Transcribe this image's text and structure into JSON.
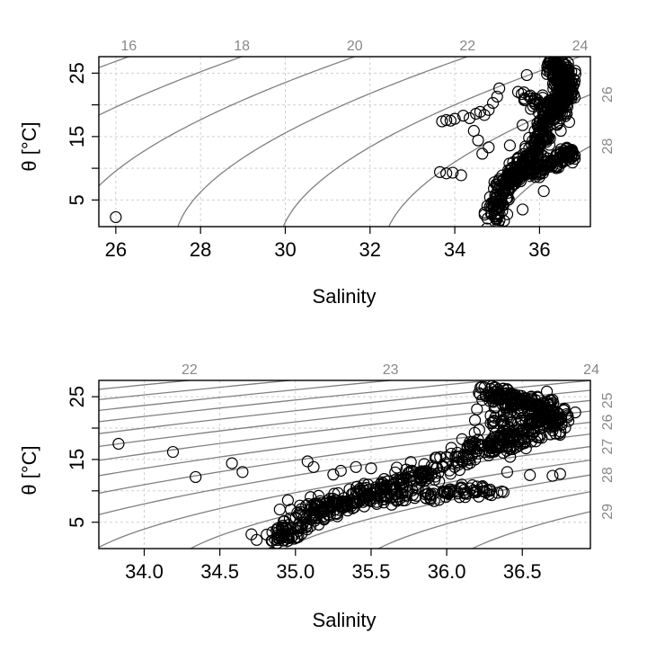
{
  "chart_data": [
    {
      "type": "scatter",
      "title": "",
      "xlabel": "Salinity",
      "ylabel": "θ [°C]",
      "xlim": [
        25.6,
        37.2
      ],
      "ylim": [
        0.8,
        27.6
      ],
      "x_ticks": [
        "26",
        "28",
        "30",
        "32",
        "34",
        "36"
      ],
      "y_ticks": [
        "5",
        "15",
        "25"
      ],
      "grid": true,
      "top_labels": [
        "16",
        "18",
        "20",
        "22",
        "24"
      ],
      "right_labels": [
        "26",
        "28"
      ],
      "sigma_levels": [
        16,
        18,
        20,
        22,
        24,
        26,
        28
      ],
      "isoline_color": "#808080",
      "grid_color": "#d0d0d0",
      "marker": "open-circle",
      "outliers": [
        {
          "x": 26.0,
          "y": 2.3
        },
        {
          "x": 33.7,
          "y": 17.4
        },
        {
          "x": 33.8,
          "y": 17.6
        },
        {
          "x": 33.9,
          "y": 17.5
        },
        {
          "x": 34.0,
          "y": 17.8
        },
        {
          "x": 34.2,
          "y": 18.3
        },
        {
          "x": 34.35,
          "y": 17.9
        },
        {
          "x": 34.5,
          "y": 18.6
        },
        {
          "x": 34.6,
          "y": 18.9
        },
        {
          "x": 34.7,
          "y": 18.4
        },
        {
          "x": 34.8,
          "y": 19.2
        },
        {
          "x": 34.9,
          "y": 20.3
        },
        {
          "x": 35.0,
          "y": 21.3
        },
        {
          "x": 35.05,
          "y": 22.6
        },
        {
          "x": 34.45,
          "y": 15.9
        },
        {
          "x": 34.55,
          "y": 14.4
        },
        {
          "x": 34.65,
          "y": 12.3
        },
        {
          "x": 34.8,
          "y": 13.3
        },
        {
          "x": 33.65,
          "y": 9.4
        },
        {
          "x": 33.8,
          "y": 9.2
        },
        {
          "x": 33.95,
          "y": 9.3
        },
        {
          "x": 34.15,
          "y": 8.9
        },
        {
          "x": 35.3,
          "y": 13.6
        },
        {
          "x": 35.6,
          "y": 16.8
        },
        {
          "x": 35.8,
          "y": 21.0
        },
        {
          "x": 36.1,
          "y": 6.4
        },
        {
          "x": 35.6,
          "y": 3.5
        },
        {
          "x": 35.7,
          "y": 24.7
        },
        {
          "x": 36.2,
          "y": 26.5
        },
        {
          "x": 36.25,
          "y": 26.6
        },
        {
          "x": 36.7,
          "y": 17.3
        },
        {
          "x": 36.65,
          "y": 12.6
        }
      ],
      "series": [
        {
          "name": "",
          "curve": [
            [
              34.9,
              1.9
            ],
            [
              35.05,
              5.0
            ],
            [
              35.25,
              8.0
            ],
            [
              35.5,
              10.0
            ],
            [
              35.8,
              12.0
            ],
            [
              36.0,
              14.5
            ],
            [
              36.2,
              17.0
            ],
            [
              36.4,
              19.5
            ],
            [
              36.55,
              21.5
            ],
            [
              36.6,
              23.5
            ],
            [
              36.5,
              25.5
            ],
            [
              36.3,
              26.6
            ]
          ],
          "count": 520,
          "spread_x": 0.12,
          "spread_y": 0.6
        },
        {
          "name": "",
          "curve": [
            [
              35.0,
              7.2
            ],
            [
              35.4,
              8.6
            ],
            [
              35.8,
              9.6
            ],
            [
              36.1,
              10.2
            ],
            [
              36.35,
              11.0
            ],
            [
              36.6,
              12.0
            ],
            [
              36.7,
              12.6
            ]
          ],
          "count": 160,
          "spread_x": 0.08,
          "spread_y": 0.5
        },
        {
          "name": "",
          "curve": [
            [
              35.5,
              22.0
            ],
            [
              35.9,
              20.0
            ],
            [
              36.3,
              20.5
            ],
            [
              36.6,
              21.0
            ],
            [
              36.7,
              21.8
            ]
          ],
          "count": 70,
          "spread_x": 0.08,
          "spread_y": 0.6
        }
      ]
    },
    {
      "type": "scatter",
      "title": "",
      "xlabel": "Salinity",
      "ylabel": "θ [°C]",
      "xlim": [
        33.7,
        36.95
      ],
      "ylim": [
        0.8,
        27.6
      ],
      "x_ticks": [
        "34.0",
        "34.5",
        "35.0",
        "35.5",
        "36.0",
        "36.5"
      ],
      "y_ticks": [
        "5",
        "15",
        "25"
      ],
      "grid": true,
      "top_labels": [
        "22",
        "23",
        "24"
      ],
      "right_labels": [
        "25",
        "26",
        "27",
        "28",
        "29"
      ],
      "sigma_levels": [
        22,
        22.5,
        23,
        23.5,
        24,
        24.5,
        25,
        25.5,
        26,
        26.5,
        27,
        27.5,
        28,
        28.5,
        29
      ],
      "isoline_color": "#808080",
      "grid_color": "#d0d0d0",
      "marker": "open-circle",
      "outliers": [
        {
          "x": 33.83,
          "y": 17.5
        },
        {
          "x": 34.19,
          "y": 16.2
        },
        {
          "x": 34.34,
          "y": 12.2
        },
        {
          "x": 34.58,
          "y": 14.4
        },
        {
          "x": 34.65,
          "y": 13.0
        },
        {
          "x": 35.08,
          "y": 14.7
        },
        {
          "x": 35.12,
          "y": 13.8
        },
        {
          "x": 35.25,
          "y": 12.6
        },
        {
          "x": 35.3,
          "y": 13.2
        },
        {
          "x": 35.4,
          "y": 13.8
        },
        {
          "x": 35.5,
          "y": 13.6
        },
        {
          "x": 35.8,
          "y": 11.0
        },
        {
          "x": 35.95,
          "y": 11.5
        },
        {
          "x": 36.1,
          "y": 11.0
        },
        {
          "x": 36.2,
          "y": 10.7
        },
        {
          "x": 36.4,
          "y": 13.0
        },
        {
          "x": 36.55,
          "y": 12.5
        },
        {
          "x": 36.7,
          "y": 12.4
        },
        {
          "x": 36.75,
          "y": 12.7
        },
        {
          "x": 36.3,
          "y": 18.0
        },
        {
          "x": 36.35,
          "y": 17.5
        },
        {
          "x": 36.5,
          "y": 17.5
        },
        {
          "x": 36.2,
          "y": 23.0
        },
        {
          "x": 36.25,
          "y": 26.5
        },
        {
          "x": 36.3,
          "y": 26.7
        },
        {
          "x": 36.4,
          "y": 26.2
        },
        {
          "x": 36.8,
          "y": 22.0
        },
        {
          "x": 36.85,
          "y": 22.5
        },
        {
          "x": 36.6,
          "y": 25.0
        },
        {
          "x": 36.7,
          "y": 24.5
        },
        {
          "x": 34.95,
          "y": 8.5
        },
        {
          "x": 35.1,
          "y": 9.0
        }
      ],
      "series": [
        {
          "name": "",
          "curve": [
            [
              34.88,
              1.9
            ],
            [
              35.0,
              4.5
            ],
            [
              35.2,
              7.2
            ],
            [
              35.5,
              9.8
            ],
            [
              35.8,
              12.2
            ],
            [
              36.05,
              14.5
            ],
            [
              36.25,
              17.0
            ],
            [
              36.45,
              19.0
            ],
            [
              36.6,
              21.0
            ],
            [
              36.7,
              22.0
            ],
            [
              36.6,
              23.8
            ],
            [
              36.4,
              24.5
            ],
            [
              36.3,
              26.0
            ]
          ],
          "count": 620,
          "spread_x": 0.07,
          "spread_y": 0.6
        },
        {
          "name": "",
          "curve": [
            [
              35.0,
              7.0
            ],
            [
              35.3,
              8.0
            ],
            [
              35.6,
              8.8
            ],
            [
              35.9,
              9.5
            ],
            [
              36.15,
              10.0
            ],
            [
              36.3,
              10.4
            ]
          ],
          "count": 150,
          "spread_x": 0.06,
          "spread_y": 0.5
        },
        {
          "name": "",
          "curve": [
            [
              36.15,
              17.5
            ],
            [
              36.35,
              16.5
            ],
            [
              36.5,
              17.5
            ],
            [
              36.65,
              19.0
            ],
            [
              36.75,
              21.0
            ]
          ],
          "count": 60,
          "spread_x": 0.05,
          "spread_y": 0.6
        },
        {
          "name": "",
          "curve": [
            [
              36.3,
              20.0
            ],
            [
              36.35,
              22.0
            ],
            [
              36.45,
              23.5
            ],
            [
              36.55,
              24.5
            ]
          ],
          "count": 40,
          "spread_x": 0.05,
          "spread_y": 0.6
        }
      ]
    }
  ]
}
